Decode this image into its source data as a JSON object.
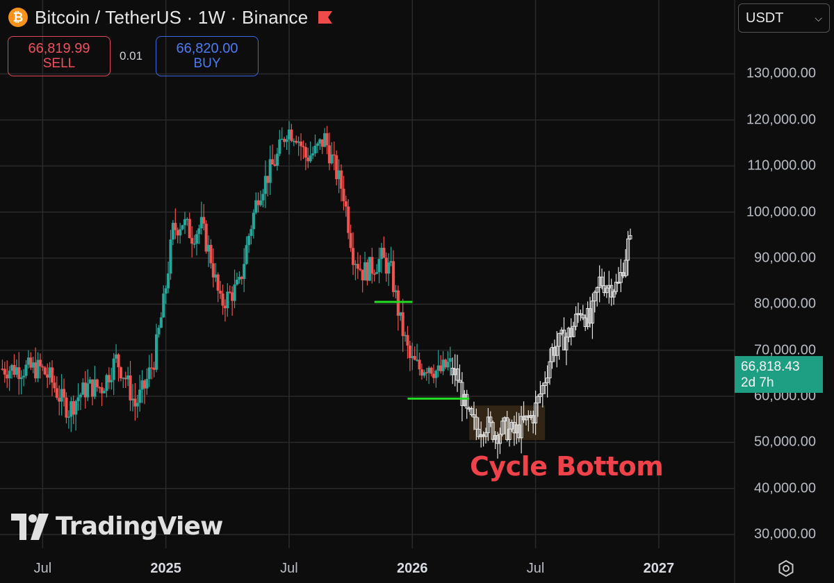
{
  "header": {
    "logo_glyph": "₿",
    "title": "Bitcoin / TetherUS · 1W · Binance",
    "flag_icon": "flag-icon",
    "flag_color": "#f04b4b"
  },
  "trade": {
    "sell_price": "66,819.99",
    "sell_label": "SELL",
    "spread": "0.01",
    "buy_price": "66,820.00",
    "buy_label": "BUY"
  },
  "currency": {
    "value": "USDT"
  },
  "price_tag": {
    "price": "66,818.43",
    "countdown": "2d 7h"
  },
  "annotation": {
    "text": "Cycle Bottom"
  },
  "watermark": {
    "text": "TradingView"
  },
  "colors": {
    "up": "#26a69a",
    "down": "#ef5350",
    "projection": "#e6e6e6",
    "support_line": "#22dd22",
    "zone": "#3a2a18",
    "accent": "#1e9e82"
  },
  "chart_data": {
    "type": "candlestick",
    "symbol": "Bitcoin / TetherUS",
    "interval": "1W",
    "exchange": "Binance",
    "y_ticks": [
      "130,000.00",
      "120,000.00",
      "110,000.00",
      "100,000.00",
      "90,000.00",
      "80,000.00",
      "70,000.00",
      "60,000.00",
      "50,000.00",
      "40,000.00",
      "30,000.00"
    ],
    "y_tick_values": [
      130000,
      120000,
      110000,
      100000,
      90000,
      80000,
      70000,
      60000,
      50000,
      40000,
      30000
    ],
    "ylim": [
      27000,
      138000
    ],
    "x_ticks": [
      {
        "label": "Jul",
        "bold": false
      },
      {
        "label": "2025",
        "bold": true
      },
      {
        "label": "Jul",
        "bold": false
      },
      {
        "label": "2026",
        "bold": true
      },
      {
        "label": "Jul",
        "bold": false
      },
      {
        "label": "2027",
        "bold": true
      }
    ],
    "x_tick_weeks": [
      0,
      26,
      52,
      78,
      104,
      130
    ],
    "x_range_weeks": [
      -9,
      146
    ],
    "historical_trend": [
      [
        0,
        66000
      ],
      [
        2,
        64000
      ],
      [
        4,
        60000
      ],
      [
        6,
        57000
      ],
      [
        8,
        60000
      ],
      [
        10,
        62000
      ],
      [
        13,
        62000
      ],
      [
        16,
        68000
      ],
      [
        18,
        64000
      ],
      [
        20,
        58000
      ],
      [
        22,
        62000
      ],
      [
        24,
        68000
      ],
      [
        26,
        80000
      ],
      [
        28,
        96000
      ],
      [
        30,
        98000
      ],
      [
        32,
        95000
      ],
      [
        34,
        97000
      ],
      [
        36,
        90000
      ],
      [
        38,
        80000
      ],
      [
        40,
        82000
      ],
      [
        42,
        84000
      ],
      [
        44,
        95000
      ],
      [
        46,
        104000
      ],
      [
        48,
        108000
      ],
      [
        50,
        112000
      ],
      [
        52,
        118000
      ],
      [
        54,
        117000
      ],
      [
        56,
        112000
      ],
      [
        58,
        113000
      ],
      [
        60,
        116000
      ],
      [
        62,
        110000
      ],
      [
        64,
        104000
      ],
      [
        66,
        91000
      ],
      [
        68,
        87000
      ],
      [
        70,
        88000
      ],
      [
        72,
        90000
      ],
      [
        74,
        87000
      ],
      [
        76,
        76000
      ],
      [
        78,
        68000
      ],
      [
        80,
        66000
      ],
      [
        82,
        67000
      ],
      [
        84,
        65000
      ],
      [
        86,
        66818
      ]
    ],
    "projection_trend": [
      [
        86,
        66818
      ],
      [
        88,
        64000
      ],
      [
        90,
        56000
      ],
      [
        92,
        53000
      ],
      [
        94,
        54000
      ],
      [
        96,
        52000
      ],
      [
        98,
        53000
      ],
      [
        100,
        52000
      ],
      [
        102,
        54000
      ],
      [
        104,
        56000
      ],
      [
        106,
        62000
      ],
      [
        108,
        70000
      ],
      [
        110,
        72000
      ],
      [
        112,
        74000
      ],
      [
        114,
        79000
      ],
      [
        116,
        76000
      ],
      [
        118,
        85000
      ],
      [
        120,
        84000
      ],
      [
        122,
        84000
      ],
      [
        124,
        93000
      ]
    ],
    "support_lines": [
      {
        "week_start": 70,
        "week_end": 78,
        "price": 80500
      },
      {
        "week_start": 77,
        "week_end": 90,
        "price": 59500
      }
    ],
    "cycle_bottom_zone": {
      "week_start": 90,
      "week_end": 106,
      "price_low": 50500,
      "price_high": 58000
    }
  }
}
